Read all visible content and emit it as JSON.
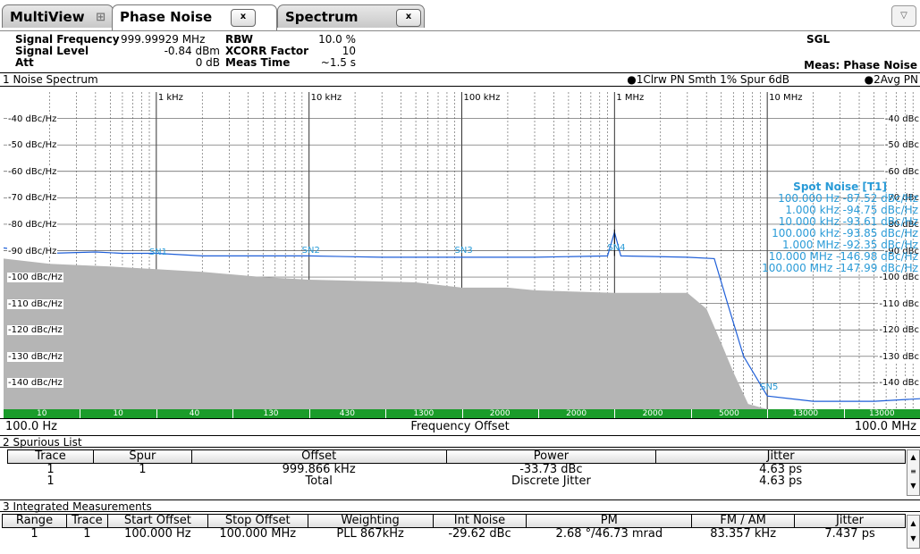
{
  "tabs": [
    {
      "label": "MultiView"
    },
    {
      "label": "Phase Noise"
    },
    {
      "label": "Spectrum"
    }
  ],
  "settings": {
    "signal_frequency_label": "Signal Frequency",
    "signal_frequency_value": "999.99929 MHz",
    "signal_level_label": "Signal Level",
    "signal_level_value": "-0.84 dBm",
    "att_label": "Att",
    "att_value": "0 dB",
    "rbw_label": "RBW",
    "rbw_value": "10.0 %",
    "xcorr_label": "XCORR Factor",
    "xcorr_value": "10",
    "meas_time_label": "Meas Time",
    "meas_time_value": "~1.5 s",
    "mode": "SGL",
    "meas": "Meas: Phase Noise"
  },
  "noise_panel": {
    "title": "1 Noise Spectrum",
    "legend_1": "●1Clrw PN Smth 1% Spur 6dB",
    "legend_2": "●2Avg PN"
  },
  "chart_data": {
    "type": "line",
    "x_scale": "log",
    "xlim_hz": [
      100,
      100000000
    ],
    "ylim": [
      -150,
      -30
    ],
    "y_ticks": [
      "-40 dBc/Hz",
      "-50 dBc/Hz",
      "-60 dBc/Hz",
      "-70 dBc/Hz",
      "-80 dBc/Hz",
      "-90 dBc/Hz",
      "-100 dBc/Hz",
      "-110 dBc/Hz",
      "-120 dBc/Hz",
      "-130 dBc/Hz",
      "-140 dBc/Hz"
    ],
    "y_ticks_right": [
      "-40 dBc",
      "-50 dBc",
      "-60 dBc",
      "-70 dBc",
      "-80 dBc",
      "-90 dBc",
      "-100 dBc",
      "-110 dBc",
      "-120 dBc",
      "-130 dBc",
      "-140 dBc"
    ],
    "y_tick_values": [
      -40,
      -50,
      -60,
      -70,
      -80,
      -90,
      -100,
      -110,
      -120,
      -130,
      -140
    ],
    "x_ticks": [
      {
        "label": "1 kHz",
        "hz": 1000
      },
      {
        "label": "10 kHz",
        "hz": 10000
      },
      {
        "label": "100 kHz",
        "hz": 100000
      },
      {
        "label": "1 MHz",
        "hz": 1000000
      },
      {
        "label": "10 MHz",
        "hz": 10000000
      }
    ],
    "x_start": "100.0 Hz",
    "x_stop": "100.0 MHz",
    "xlabel": "Frequency Offset",
    "trace1": {
      "color": "#1f5fd8",
      "points": [
        [
          100,
          -89
        ],
        [
          200,
          -91
        ],
        [
          400,
          -90.5
        ],
        [
          600,
          -91
        ],
        [
          1000,
          -91
        ],
        [
          2000,
          -92
        ],
        [
          5000,
          -92
        ],
        [
          10000,
          -92
        ],
        [
          30000,
          -92.5
        ],
        [
          100000,
          -92.5
        ],
        [
          300000,
          -92.5
        ],
        [
          900000,
          -92
        ],
        [
          1000000,
          -83
        ],
        [
          1100000,
          -92
        ],
        [
          3000000,
          -92.5
        ],
        [
          4500000,
          -93
        ],
        [
          5500000,
          -110
        ],
        [
          7000000,
          -130
        ],
        [
          10000000,
          -145
        ],
        [
          20000000,
          -147
        ],
        [
          50000000,
          -147
        ],
        [
          100000000,
          -146
        ]
      ]
    },
    "trace2_fill": {
      "color": "#b5b5b5",
      "points": [
        [
          100,
          -93
        ],
        [
          200,
          -95
        ],
        [
          500,
          -96
        ],
        [
          1000,
          -97
        ],
        [
          2000,
          -98
        ],
        [
          5000,
          -100
        ],
        [
          10000,
          -101
        ],
        [
          50000,
          -102
        ],
        [
          100000,
          -104
        ],
        [
          200000,
          -104
        ],
        [
          300000,
          -105
        ],
        [
          1000000,
          -106
        ],
        [
          3000000,
          -106
        ],
        [
          4000000,
          -112
        ],
        [
          5000000,
          -125
        ],
        [
          6000000,
          -136
        ],
        [
          7500000,
          -148
        ],
        [
          10000000,
          -150
        ]
      ]
    },
    "spur_markers": [
      {
        "label": "SN1",
        "hz": 1000,
        "db": -91
      },
      {
        "label": "SN2",
        "hz": 10000,
        "db": -90
      },
      {
        "label": "SN3",
        "hz": 100000,
        "db": -90
      },
      {
        "label": "SN4",
        "hz": 1000000,
        "db": -89
      },
      {
        "label": "SN5",
        "hz": 10000000,
        "db": -142
      }
    ],
    "spot_noise_title": "Spot Noise [T1]",
    "spot_noise": [
      "100.000 Hz  -87.52 dBc/Hz",
      "1.000 kHz  -94.75 dBc/Hz",
      "10.000 kHz  -93.61 dBc/Hz",
      "100.000 kHz  -93.85 dBc/Hz",
      "1.000 MHz  -92.35 dBc/Hz",
      "10.000 MHz  -146.98 dBc/Hz",
      "100.000 MHz  -147.99 dBc/Hz"
    ],
    "colors": {
      "trace1": "#1f5fd8",
      "fill": "#b5b5b5",
      "spot": "#2a9bd7",
      "band": "#1a9c2a"
    }
  },
  "green_band": [
    "10",
    "10",
    "40",
    "130",
    "430",
    "1300",
    "2000",
    "2000",
    "2000",
    "5000",
    "13000",
    "13000"
  ],
  "spur_list": {
    "title": "2 Spurious List",
    "headers": [
      "Trace",
      "Spur",
      "Offset",
      "Power",
      "Jitter"
    ],
    "rows": [
      [
        "1",
        "1",
        "999.866 kHz",
        "-33.73 dBc",
        "4.63 ps"
      ],
      [
        "1",
        "",
        "Total",
        "Discrete Jitter",
        "4.63 ps"
      ]
    ]
  },
  "integrated": {
    "title": "3 Integrated Measurements",
    "headers": [
      "Range",
      "Trace",
      "Start Offset",
      "Stop Offset",
      "Weighting",
      "Int Noise",
      "PM",
      "FM / AM",
      "Jitter"
    ],
    "rows": [
      [
        "1",
        "1",
        "100.000 Hz",
        "100.000 MHz",
        "PLL 867kHz",
        "-29.62 dBc",
        "2.68 °/46.73 mrad",
        "83.357 kHz",
        "7.437 ps"
      ]
    ]
  }
}
